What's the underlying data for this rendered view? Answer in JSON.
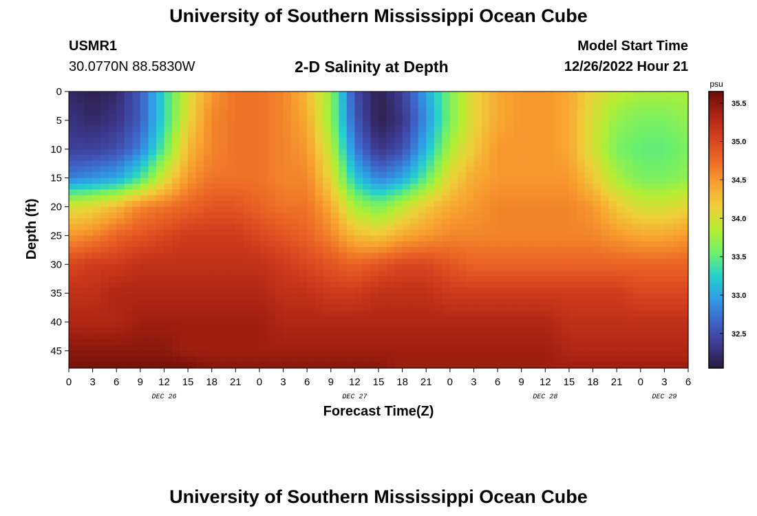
{
  "header": {
    "title": "University of Southern Mississippi Ocean Cube",
    "station_id": "USMR1",
    "station_coords": "30.0770N  88.5830W",
    "plot_title": "2-D Salinity at Depth",
    "model_start_label": "Model Start Time",
    "model_start_time": "12/26/2022 Hour 21"
  },
  "footer": {
    "title": "University of Southern Mississippi Ocean Cube"
  },
  "chart_data": {
    "type": "heatmap",
    "title": "2-D Salinity at Depth",
    "xlabel": "Forecast Time(Z)",
    "ylabel": "Depth (ft)",
    "x_tick_labels": [
      "0",
      "3",
      "6",
      "9",
      "12",
      "15",
      "18",
      "21",
      "0",
      "3",
      "6",
      "9",
      "12",
      "15",
      "18",
      "21",
      "0",
      "3",
      "6",
      "9",
      "12",
      "15",
      "18",
      "21",
      "0",
      "3",
      "6"
    ],
    "x_date_labels": [
      {
        "label": "DEC 26",
        "hour": 12
      },
      {
        "label": "DEC 27",
        "hour": 36
      },
      {
        "label": "DEC 28",
        "hour": 60
      },
      {
        "label": "DEC 29",
        "hour": 75
      }
    ],
    "xlim_hours": [
      0,
      78
    ],
    "y_ticks": [
      0,
      5,
      10,
      15,
      20,
      25,
      30,
      35,
      40,
      45
    ],
    "ylim": [
      0,
      48
    ],
    "y_inverted": true,
    "colorbar": {
      "unit": "psu",
      "ticks": [
        32.5,
        33.0,
        33.5,
        34.0,
        34.5,
        35.0,
        35.5
      ],
      "range": [
        32.05,
        35.65
      ],
      "colors": [
        "#2a1a3f",
        "#3d3990",
        "#3f63c7",
        "#2f9ce6",
        "#25d1cc",
        "#6ef06a",
        "#b6ee32",
        "#efd03a",
        "#f8a12f",
        "#ed6a26",
        "#d4401e",
        "#a92212",
        "#6a0e08"
      ]
    },
    "time_hours": [
      0,
      3,
      6,
      9,
      12,
      15,
      18,
      21,
      24,
      27,
      30,
      33,
      36,
      39,
      42,
      45,
      48,
      51,
      54,
      57,
      60,
      63,
      66,
      69,
      72,
      75,
      78
    ],
    "depth_ft": [
      0,
      5,
      10,
      15,
      20,
      25,
      30,
      35,
      40,
      45,
      48
    ],
    "salinity_psu": [
      [
        32.2,
        32.1,
        32.2,
        32.6,
        33.3,
        34.0,
        34.5,
        34.7,
        34.7,
        34.6,
        34.3,
        33.7,
        32.5,
        32.1,
        32.4,
        33.0,
        33.6,
        34.1,
        34.4,
        34.5,
        34.5,
        34.4,
        34.1,
        33.9,
        33.8,
        33.8,
        33.8
      ],
      [
        32.3,
        32.2,
        32.3,
        32.6,
        33.3,
        34.1,
        34.6,
        34.7,
        34.7,
        34.6,
        34.4,
        33.7,
        32.6,
        32.1,
        32.3,
        32.9,
        33.6,
        34.1,
        34.4,
        34.5,
        34.5,
        34.4,
        34.0,
        33.7,
        33.6,
        33.6,
        33.7
      ],
      [
        32.4,
        32.4,
        32.5,
        32.8,
        33.5,
        34.3,
        34.6,
        34.7,
        34.7,
        34.6,
        34.5,
        33.9,
        32.8,
        32.3,
        32.5,
        33.1,
        33.8,
        34.2,
        34.5,
        34.5,
        34.5,
        34.4,
        34.0,
        33.6,
        33.5,
        33.5,
        33.6
      ],
      [
        32.8,
        32.9,
        33.0,
        33.4,
        34.0,
        34.5,
        34.7,
        34.7,
        34.7,
        34.6,
        34.6,
        34.1,
        33.2,
        32.8,
        33.0,
        33.5,
        34.1,
        34.4,
        34.5,
        34.5,
        34.5,
        34.5,
        34.2,
        33.8,
        33.6,
        33.6,
        33.7
      ],
      [
        34.0,
        34.1,
        34.3,
        34.6,
        34.7,
        34.8,
        34.9,
        34.9,
        34.8,
        34.7,
        34.7,
        34.4,
        33.8,
        33.6,
        33.9,
        34.2,
        34.4,
        34.5,
        34.6,
        34.6,
        34.6,
        34.6,
        34.5,
        34.2,
        34.0,
        34.0,
        34.1
      ],
      [
        34.5,
        34.6,
        34.8,
        34.9,
        35.0,
        35.1,
        35.1,
        35.1,
        35.0,
        34.9,
        34.8,
        34.6,
        34.3,
        34.2,
        34.4,
        34.5,
        34.6,
        34.6,
        34.6,
        34.6,
        34.6,
        34.6,
        34.6,
        34.5,
        34.4,
        34.4,
        34.5
      ],
      [
        35.0,
        35.1,
        35.1,
        35.2,
        35.2,
        35.2,
        35.2,
        35.2,
        35.2,
        35.1,
        35.0,
        34.9,
        34.8,
        34.9,
        35.0,
        35.0,
        34.9,
        34.8,
        34.8,
        34.8,
        34.8,
        34.8,
        34.8,
        34.8,
        34.8,
        34.8,
        34.8
      ],
      [
        35.2,
        35.2,
        35.3,
        35.3,
        35.3,
        35.3,
        35.3,
        35.3,
        35.3,
        35.2,
        35.2,
        35.1,
        35.1,
        35.2,
        35.2,
        35.2,
        35.1,
        35.1,
        35.1,
        35.1,
        35.1,
        35.1,
        35.1,
        35.1,
        35.0,
        35.0,
        35.0
      ],
      [
        35.3,
        35.3,
        35.3,
        35.4,
        35.4,
        35.4,
        35.4,
        35.4,
        35.4,
        35.3,
        35.3,
        35.3,
        35.3,
        35.3,
        35.3,
        35.3,
        35.3,
        35.3,
        35.3,
        35.3,
        35.3,
        35.2,
        35.2,
        35.2,
        35.2,
        35.2,
        35.2
      ],
      [
        35.5,
        35.5,
        35.5,
        35.5,
        35.5,
        35.4,
        35.4,
        35.4,
        35.4,
        35.4,
        35.4,
        35.4,
        35.4,
        35.4,
        35.4,
        35.4,
        35.4,
        35.4,
        35.4,
        35.4,
        35.4,
        35.3,
        35.3,
        35.3,
        35.3,
        35.3,
        35.3
      ],
      [
        35.6,
        35.6,
        35.6,
        35.6,
        35.6,
        35.6,
        35.5,
        35.5,
        35.5,
        35.5,
        35.5,
        35.5,
        35.5,
        35.5,
        35.4,
        35.4,
        35.4,
        35.4,
        35.4,
        35.4,
        35.4,
        35.4,
        35.4,
        35.4,
        35.4,
        35.4,
        35.4
      ]
    ]
  }
}
